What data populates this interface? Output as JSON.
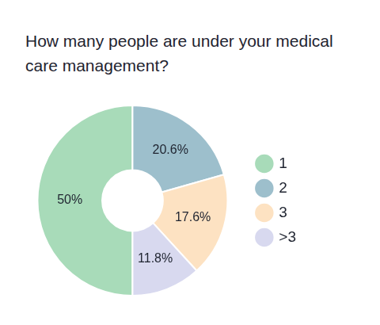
{
  "chart_data": {
    "type": "doughnut",
    "title": "How many people are under your medical care management?",
    "categories": [
      "1",
      "2",
      "3",
      ">3"
    ],
    "values": [
      50,
      20.6,
      17.6,
      11.8
    ],
    "value_labels": [
      "50%",
      "20.6%",
      "17.6%",
      "11.8%"
    ],
    "colors": [
      "#a8dbb9",
      "#9dbfcc",
      "#fde2c2",
      "#d8d9ef"
    ],
    "legend": "right",
    "data_labels": true
  }
}
